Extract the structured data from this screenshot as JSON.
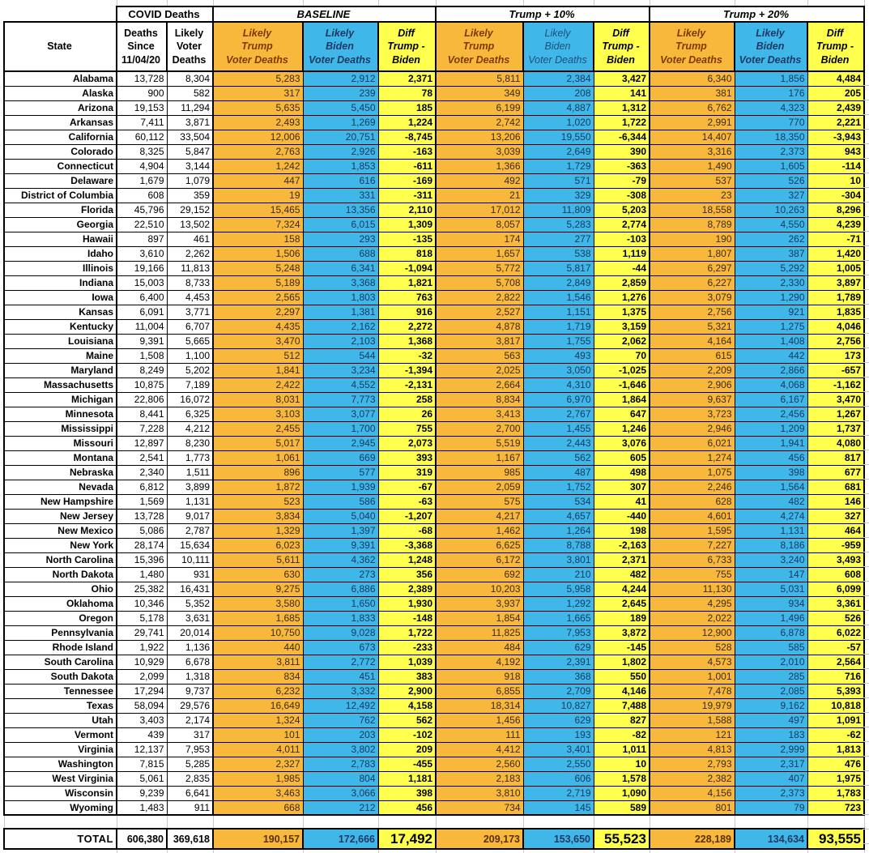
{
  "colors": {
    "trump_orange": "#F8B83C",
    "biden_blue": "#3FB8E9",
    "diff_yellow": "#FFFF4D",
    "trump_text": "#7C3A00",
    "biden_text": "#1F3864"
  },
  "header": {
    "covid_deaths": "COVID Deaths",
    "baseline": "BASELINE",
    "trump_plus_10": "Trump + 10%",
    "trump_plus_20": "Trump + 20%",
    "state": "State",
    "deaths_since": "Deaths\nSince\n11/04/20",
    "likely_voter_deaths": "Likely\nVoter\nDeaths",
    "likely_trump": "Likely\nTrump\nVoter Deaths",
    "likely_biden": "Likely\nBiden\nVoter Deaths",
    "diff": "Diff\nTrump -\nBiden"
  },
  "rows": [
    {
      "state": "Alabama",
      "values": [
        "13,728",
        "8,304",
        "5,283",
        "2,912",
        "2,371",
        "5,811",
        "2,384",
        "3,427",
        "6,340",
        "1,856",
        "4,484"
      ]
    },
    {
      "state": "Alaska",
      "values": [
        "900",
        "582",
        "317",
        "239",
        "78",
        "349",
        "208",
        "141",
        "381",
        "176",
        "205"
      ]
    },
    {
      "state": "Arizona",
      "values": [
        "19,153",
        "11,294",
        "5,635",
        "5,450",
        "185",
        "6,199",
        "4,887",
        "1,312",
        "6,762",
        "4,323",
        "2,439"
      ]
    },
    {
      "state": "Arkansas",
      "values": [
        "7,411",
        "3,871",
        "2,493",
        "1,269",
        "1,224",
        "2,742",
        "1,020",
        "1,722",
        "2,991",
        "770",
        "2,221"
      ]
    },
    {
      "state": "California",
      "values": [
        "60,112",
        "33,504",
        "12,006",
        "20,751",
        "-8,745",
        "13,206",
        "19,550",
        "-6,344",
        "14,407",
        "18,350",
        "-3,943"
      ]
    },
    {
      "state": "Colorado",
      "values": [
        "8,325",
        "5,847",
        "2,763",
        "2,926",
        "-163",
        "3,039",
        "2,649",
        "390",
        "3,316",
        "2,373",
        "943"
      ]
    },
    {
      "state": "Connecticut",
      "values": [
        "4,904",
        "3,144",
        "1,242",
        "1,853",
        "-611",
        "1,366",
        "1,729",
        "-363",
        "1,490",
        "1,605",
        "-114"
      ]
    },
    {
      "state": "Delaware",
      "values": [
        "1,679",
        "1,079",
        "447",
        "616",
        "-169",
        "492",
        "571",
        "-79",
        "537",
        "526",
        "10"
      ]
    },
    {
      "state": "District of Columbia",
      "values": [
        "608",
        "359",
        "19",
        "331",
        "-311",
        "21",
        "329",
        "-308",
        "23",
        "327",
        "-304"
      ]
    },
    {
      "state": "Florida",
      "values": [
        "45,796",
        "29,152",
        "15,465",
        "13,356",
        "2,110",
        "17,012",
        "11,809",
        "5,203",
        "18,558",
        "10,263",
        "8,296"
      ]
    },
    {
      "state": "Georgia",
      "values": [
        "22,510",
        "13,502",
        "7,324",
        "6,015",
        "1,309",
        "8,057",
        "5,283",
        "2,774",
        "8,789",
        "4,550",
        "4,239"
      ]
    },
    {
      "state": "Hawaii",
      "values": [
        "897",
        "461",
        "158",
        "293",
        "-135",
        "174",
        "277",
        "-103",
        "190",
        "262",
        "-71"
      ]
    },
    {
      "state": "Idaho",
      "values": [
        "3,610",
        "2,262",
        "1,506",
        "688",
        "818",
        "1,657",
        "538",
        "1,119",
        "1,807",
        "387",
        "1,420"
      ]
    },
    {
      "state": "Illinois",
      "values": [
        "19,166",
        "11,813",
        "5,248",
        "6,341",
        "-1,094",
        "5,772",
        "5,817",
        "-44",
        "6,297",
        "5,292",
        "1,005"
      ]
    },
    {
      "state": "Indiana",
      "values": [
        "15,003",
        "8,733",
        "5,189",
        "3,368",
        "1,821",
        "5,708",
        "2,849",
        "2,859",
        "6,227",
        "2,330",
        "3,897"
      ]
    },
    {
      "state": "Iowa",
      "values": [
        "6,400",
        "4,453",
        "2,565",
        "1,803",
        "763",
        "2,822",
        "1,546",
        "1,276",
        "3,079",
        "1,290",
        "1,789"
      ]
    },
    {
      "state": "Kansas",
      "values": [
        "6,091",
        "3,771",
        "2,297",
        "1,381",
        "916",
        "2,527",
        "1,151",
        "1,375",
        "2,756",
        "921",
        "1,835"
      ]
    },
    {
      "state": "Kentucky",
      "values": [
        "11,004",
        "6,707",
        "4,435",
        "2,162",
        "2,272",
        "4,878",
        "1,719",
        "3,159",
        "5,321",
        "1,275",
        "4,046"
      ]
    },
    {
      "state": "Louisiana",
      "values": [
        "9,391",
        "5,665",
        "3,470",
        "2,103",
        "1,368",
        "3,817",
        "1,755",
        "2,062",
        "4,164",
        "1,408",
        "2,756"
      ]
    },
    {
      "state": "Maine",
      "values": [
        "1,508",
        "1,100",
        "512",
        "544",
        "-32",
        "563",
        "493",
        "70",
        "615",
        "442",
        "173"
      ]
    },
    {
      "state": "Maryland",
      "values": [
        "8,249",
        "5,202",
        "1,841",
        "3,234",
        "-1,394",
        "2,025",
        "3,050",
        "-1,025",
        "2,209",
        "2,866",
        "-657"
      ]
    },
    {
      "state": "Massachusetts",
      "values": [
        "10,875",
        "7,189",
        "2,422",
        "4,552",
        "-2,131",
        "2,664",
        "4,310",
        "-1,646",
        "2,906",
        "4,068",
        "-1,162"
      ]
    },
    {
      "state": "Michigan",
      "values": [
        "22,806",
        "16,072",
        "8,031",
        "7,773",
        "258",
        "8,834",
        "6,970",
        "1,864",
        "9,637",
        "6,167",
        "3,470"
      ]
    },
    {
      "state": "Minnesota",
      "values": [
        "8,441",
        "6,325",
        "3,103",
        "3,077",
        "26",
        "3,413",
        "2,767",
        "647",
        "3,723",
        "2,456",
        "1,267"
      ]
    },
    {
      "state": "Mississippi",
      "values": [
        "7,228",
        "4,212",
        "2,455",
        "1,700",
        "755",
        "2,700",
        "1,455",
        "1,246",
        "2,946",
        "1,209",
        "1,737"
      ]
    },
    {
      "state": "Missouri",
      "values": [
        "12,897",
        "8,230",
        "5,017",
        "2,945",
        "2,073",
        "5,519",
        "2,443",
        "3,076",
        "6,021",
        "1,941",
        "4,080"
      ]
    },
    {
      "state": "Montana",
      "values": [
        "2,541",
        "1,773",
        "1,061",
        "669",
        "393",
        "1,167",
        "562",
        "605",
        "1,274",
        "456",
        "817"
      ]
    },
    {
      "state": "Nebraska",
      "values": [
        "2,340",
        "1,511",
        "896",
        "577",
        "319",
        "985",
        "487",
        "498",
        "1,075",
        "398",
        "677"
      ]
    },
    {
      "state": "Nevada",
      "values": [
        "6,812",
        "3,899",
        "1,872",
        "1,939",
        "-67",
        "2,059",
        "1,752",
        "307",
        "2,246",
        "1,564",
        "681"
      ]
    },
    {
      "state": "New Hampshire",
      "values": [
        "1,569",
        "1,131",
        "523",
        "586",
        "-63",
        "575",
        "534",
        "41",
        "628",
        "482",
        "146"
      ]
    },
    {
      "state": "New Jersey",
      "values": [
        "13,728",
        "9,017",
        "3,834",
        "5,040",
        "-1,207",
        "4,217",
        "4,657",
        "-440",
        "4,601",
        "4,274",
        "327"
      ]
    },
    {
      "state": "New Mexico",
      "values": [
        "5,086",
        "2,787",
        "1,329",
        "1,397",
        "-68",
        "1,462",
        "1,264",
        "198",
        "1,595",
        "1,131",
        "464"
      ]
    },
    {
      "state": "New York",
      "values": [
        "28,174",
        "15,634",
        "6,023",
        "9,391",
        "-3,368",
        "6,625",
        "8,788",
        "-2,163",
        "7,227",
        "8,186",
        "-959"
      ]
    },
    {
      "state": "North Carolina",
      "values": [
        "15,396",
        "10,111",
        "5,611",
        "4,362",
        "1,248",
        "6,172",
        "3,801",
        "2,371",
        "6,733",
        "3,240",
        "3,493"
      ]
    },
    {
      "state": "North Dakota",
      "values": [
        "1,480",
        "931",
        "630",
        "273",
        "356",
        "692",
        "210",
        "482",
        "755",
        "147",
        "608"
      ]
    },
    {
      "state": "Ohio",
      "values": [
        "25,382",
        "16,431",
        "9,275",
        "6,886",
        "2,389",
        "10,203",
        "5,958",
        "4,244",
        "11,130",
        "5,031",
        "6,099"
      ]
    },
    {
      "state": "Oklahoma",
      "values": [
        "10,346",
        "5,352",
        "3,580",
        "1,650",
        "1,930",
        "3,937",
        "1,292",
        "2,645",
        "4,295",
        "934",
        "3,361"
      ]
    },
    {
      "state": "Oregon",
      "values": [
        "5,178",
        "3,631",
        "1,685",
        "1,833",
        "-148",
        "1,854",
        "1,665",
        "189",
        "2,022",
        "1,496",
        "526"
      ]
    },
    {
      "state": "Pennsylvania",
      "values": [
        "29,741",
        "20,014",
        "10,750",
        "9,028",
        "1,722",
        "11,825",
        "7,953",
        "3,872",
        "12,900",
        "6,878",
        "6,022"
      ]
    },
    {
      "state": "Rhode Island",
      "values": [
        "1,922",
        "1,136",
        "440",
        "673",
        "-233",
        "484",
        "629",
        "-145",
        "528",
        "585",
        "-57"
      ]
    },
    {
      "state": "South Carolina",
      "values": [
        "10,929",
        "6,678",
        "3,811",
        "2,772",
        "1,039",
        "4,192",
        "2,391",
        "1,802",
        "4,573",
        "2,010",
        "2,564"
      ]
    },
    {
      "state": "South Dakota",
      "values": [
        "2,099",
        "1,318",
        "834",
        "451",
        "383",
        "918",
        "368",
        "550",
        "1,001",
        "285",
        "716"
      ]
    },
    {
      "state": "Tennessee",
      "values": [
        "17,294",
        "9,737",
        "6,232",
        "3,332",
        "2,900",
        "6,855",
        "2,709",
        "4,146",
        "7,478",
        "2,085",
        "5,393"
      ]
    },
    {
      "state": "Texas",
      "values": [
        "58,094",
        "29,576",
        "16,649",
        "12,492",
        "4,158",
        "18,314",
        "10,827",
        "7,488",
        "19,979",
        "9,162",
        "10,818"
      ]
    },
    {
      "state": "Utah",
      "values": [
        "3,403",
        "2,174",
        "1,324",
        "762",
        "562",
        "1,456",
        "629",
        "827",
        "1,588",
        "497",
        "1,091"
      ]
    },
    {
      "state": "Vermont",
      "values": [
        "439",
        "317",
        "101",
        "203",
        "-102",
        "111",
        "193",
        "-82",
        "121",
        "183",
        "-62"
      ]
    },
    {
      "state": "Virginia",
      "values": [
        "12,137",
        "7,953",
        "4,011",
        "3,802",
        "209",
        "4,412",
        "3,401",
        "1,011",
        "4,813",
        "2,999",
        "1,813"
      ]
    },
    {
      "state": "Washington",
      "values": [
        "7,815",
        "5,285",
        "2,327",
        "2,783",
        "-455",
        "2,560",
        "2,550",
        "10",
        "2,793",
        "2,317",
        "476"
      ]
    },
    {
      "state": "West Virginia",
      "values": [
        "5,061",
        "2,835",
        "1,985",
        "804",
        "1,181",
        "2,183",
        "606",
        "1,578",
        "2,382",
        "407",
        "1,975"
      ]
    },
    {
      "state": "Wisconsin",
      "values": [
        "9,239",
        "6,641",
        "3,463",
        "3,066",
        "398",
        "3,810",
        "2,719",
        "1,090",
        "4,156",
        "2,373",
        "1,783"
      ]
    },
    {
      "state": "Wyoming",
      "values": [
        "1,483",
        "911",
        "668",
        "212",
        "456",
        "734",
        "145",
        "589",
        "801",
        "79",
        "723"
      ]
    }
  ],
  "total": {
    "label": "TOTAL",
    "values": [
      "606,380",
      "369,618",
      "190,157",
      "172,666",
      "17,492",
      "209,173",
      "153,650",
      "55,523",
      "228,189",
      "134,634",
      "93,555"
    ]
  }
}
